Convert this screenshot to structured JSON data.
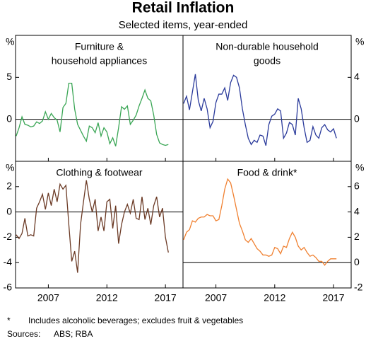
{
  "title": "Retail Inflation",
  "subtitle": "Selected items, year-ended",
  "footnote_marker": "*",
  "footnote": "Includes alcoholic beverages; excludes fruit & vegetables",
  "sources_label": "Sources:",
  "sources": "ABS; RBA",
  "chart_data": [
    {
      "type": "line",
      "title": [
        "Furniture &",
        "household appliances"
      ],
      "y_unit": "%",
      "y_axis_side": "left",
      "show_xticklabels": false,
      "zero_line": true,
      "xlim": [
        2004.2,
        2018.5
      ],
      "xticks": [
        2007,
        2012,
        2017
      ],
      "ylim": [
        -5,
        10
      ],
      "yticks": [
        0,
        5
      ],
      "x": [
        2004.25,
        2004.5,
        2004.75,
        2005,
        2005.25,
        2005.5,
        2005.75,
        2006,
        2006.25,
        2006.5,
        2006.75,
        2007,
        2007.25,
        2007.5,
        2007.75,
        2008,
        2008.25,
        2008.5,
        2008.75,
        2009,
        2009.25,
        2009.5,
        2009.75,
        2010,
        2010.25,
        2010.5,
        2010.75,
        2011,
        2011.25,
        2011.5,
        2011.75,
        2012,
        2012.25,
        2012.5,
        2012.75,
        2013,
        2013.25,
        2013.5,
        2013.75,
        2014,
        2014.25,
        2014.5,
        2014.75,
        2015,
        2015.25,
        2015.5,
        2015.75,
        2016,
        2016.25,
        2016.5,
        2016.75,
        2017,
        2017.25
      ],
      "series": [
        {
          "name": "Furniture & household appliances",
          "color": "#3aa655",
          "values": [
            -2.0,
            -1.0,
            0.3,
            -0.6,
            -0.7,
            -0.9,
            -0.8,
            -0.3,
            -0.5,
            -0.2,
            0.9,
            0.0,
            0.7,
            0.2,
            -0.1,
            -1.5,
            1.4,
            1.9,
            4.3,
            4.3,
            1.2,
            -0.6,
            -1.3,
            -2.0,
            -2.6,
            -0.8,
            -1.0,
            -1.6,
            -0.4,
            -2.0,
            -1.0,
            -1.5,
            -2.9,
            -2.2,
            -3.2,
            -1.0,
            1.5,
            1.2,
            1.6,
            -0.6,
            -0.1,
            0.5,
            1.6,
            2.5,
            3.5,
            2.5,
            2.2,
            0.5,
            -1.8,
            -2.8,
            -3.0,
            -3.1,
            -3.0
          ]
        }
      ]
    },
    {
      "type": "line",
      "title": [
        "Non-durable household",
        "goods"
      ],
      "y_unit": "%",
      "y_axis_side": "right",
      "show_xticklabels": false,
      "zero_line": true,
      "xlim": [
        2004.2,
        2018.5
      ],
      "xticks": [
        2007,
        2012,
        2017
      ],
      "ylim": [
        -4,
        8
      ],
      "yticks": [
        0,
        4
      ],
      "x": [
        2004.25,
        2004.5,
        2004.75,
        2005,
        2005.25,
        2005.5,
        2005.75,
        2006,
        2006.25,
        2006.5,
        2006.75,
        2007,
        2007.25,
        2007.5,
        2007.75,
        2008,
        2008.25,
        2008.5,
        2008.75,
        2009,
        2009.25,
        2009.5,
        2009.75,
        2010,
        2010.25,
        2010.5,
        2010.75,
        2011,
        2011.25,
        2011.5,
        2011.75,
        2012,
        2012.25,
        2012.5,
        2012.75,
        2013,
        2013.25,
        2013.5,
        2013.75,
        2014,
        2014.25,
        2014.5,
        2014.75,
        2015,
        2015.25,
        2015.5,
        2015.75,
        2016,
        2016.25,
        2016.5,
        2016.75,
        2017,
        2017.25
      ],
      "series": [
        {
          "name": "Non-durable household goods",
          "color": "#2a3a9b",
          "values": [
            1.5,
            2.2,
            0.9,
            2.6,
            4.3,
            1.8,
            0.8,
            2.0,
            1.0,
            -0.8,
            -0.2,
            1.6,
            2.4,
            2.4,
            3.0,
            1.8,
            3.5,
            4.2,
            4.0,
            3.0,
            1.0,
            -0.5,
            -1.8,
            -2.4,
            -2.0,
            -2.2,
            -1.5,
            -1.6,
            -2.5,
            -0.5,
            0.3,
            0.5,
            1.0,
            0.8,
            -1.8,
            -1.3,
            -0.3,
            -0.5,
            -1.5,
            2.0,
            1.0,
            -0.8,
            -2.2,
            -2.0,
            -0.7,
            -1.5,
            -1.8,
            -0.8,
            -0.5,
            -1.0,
            -1.2,
            -0.9,
            -1.8
          ]
        }
      ]
    },
    {
      "type": "line",
      "title": [
        "Clothing & footwear"
      ],
      "y_unit": "%",
      "y_axis_side": "left",
      "show_xticklabels": true,
      "zero_line": true,
      "xlim": [
        2004.2,
        2018.5
      ],
      "xticks": [
        2007,
        2012,
        2017
      ],
      "ylim": [
        -6,
        4
      ],
      "yticks": [
        -6,
        -4,
        -2,
        0,
        2
      ],
      "x": [
        2004.25,
        2004.5,
        2004.75,
        2005,
        2005.25,
        2005.5,
        2005.75,
        2006,
        2006.25,
        2006.5,
        2006.75,
        2007,
        2007.25,
        2007.5,
        2007.75,
        2008,
        2008.25,
        2008.5,
        2008.75,
        2009,
        2009.25,
        2009.5,
        2009.75,
        2010,
        2010.25,
        2010.5,
        2010.75,
        2011,
        2011.25,
        2011.5,
        2011.75,
        2012,
        2012.25,
        2012.5,
        2012.75,
        2013,
        2013.25,
        2013.5,
        2013.75,
        2014,
        2014.25,
        2014.5,
        2014.75,
        2015,
        2015.25,
        2015.5,
        2015.75,
        2016,
        2016.25,
        2016.5,
        2016.75,
        2017,
        2017.25
      ],
      "series": [
        {
          "name": "Clothing & footwear",
          "color": "#6b3a25",
          "values": [
            -1.8,
            -2.1,
            -1.7,
            -0.5,
            -1.9,
            -1.8,
            -1.9,
            0.3,
            0.8,
            1.4,
            0.2,
            1.5,
            0.5,
            1.8,
            0.8,
            2.2,
            1.8,
            2.1,
            -1.0,
            -3.9,
            -3.1,
            -4.8,
            -1.0,
            0.8,
            2.5,
            1.0,
            0.0,
            1.0,
            -1.5,
            -0.4,
            -1.5,
            0.8,
            1.0,
            -1.3,
            0.5,
            -2.5,
            -1.0,
            0.0,
            0.6,
            -0.1,
            1.0,
            -0.5,
            -0.6,
            1.2,
            -0.6,
            0.3,
            -1.0,
            0.5,
            1.2,
            -0.4,
            0.3,
            -2.0,
            -3.2
          ]
        }
      ]
    },
    {
      "type": "line",
      "title": [
        "Food & drink*"
      ],
      "y_unit": "%",
      "y_axis_side": "right",
      "show_xticklabels": true,
      "zero_line": true,
      "xlim": [
        2004.2,
        2018.5
      ],
      "xticks": [
        2007,
        2012,
        2017
      ],
      "ylim": [
        -2,
        8
      ],
      "yticks": [
        -2,
        0,
        2,
        4,
        6
      ],
      "x": [
        2004.25,
        2004.5,
        2004.75,
        2005,
        2005.25,
        2005.5,
        2005.75,
        2006,
        2006.25,
        2006.5,
        2006.75,
        2007,
        2007.25,
        2007.5,
        2007.75,
        2008,
        2008.25,
        2008.5,
        2008.75,
        2009,
        2009.25,
        2009.5,
        2009.75,
        2010,
        2010.25,
        2010.5,
        2010.75,
        2011,
        2011.25,
        2011.5,
        2011.75,
        2012,
        2012.25,
        2012.5,
        2012.75,
        2013,
        2013.25,
        2013.5,
        2013.75,
        2014,
        2014.25,
        2014.5,
        2014.75,
        2015,
        2015.25,
        2015.5,
        2015.75,
        2016,
        2016.25,
        2016.5,
        2016.75,
        2017,
        2017.25
      ],
      "series": [
        {
          "name": "Food & drink*",
          "color": "#f08030",
          "values": [
            1.8,
            2.4,
            2.6,
            3.3,
            3.2,
            3.5,
            3.6,
            3.6,
            3.8,
            3.7,
            3.7,
            3.3,
            3.4,
            4.5,
            5.8,
            6.6,
            6.3,
            5.3,
            4.2,
            3.1,
            2.5,
            1.8,
            1.6,
            1.9,
            1.5,
            1.1,
            0.9,
            0.6,
            0.6,
            0.5,
            0.6,
            1.2,
            1.1,
            0.7,
            1.3,
            1.2,
            1.9,
            2.4,
            2.0,
            1.3,
            1.0,
            1.2,
            0.8,
            0.5,
            0.6,
            0.4,
            0.1,
            0.1,
            -0.2,
            0.1,
            0.3,
            0.3,
            0.3
          ]
        }
      ]
    }
  ]
}
